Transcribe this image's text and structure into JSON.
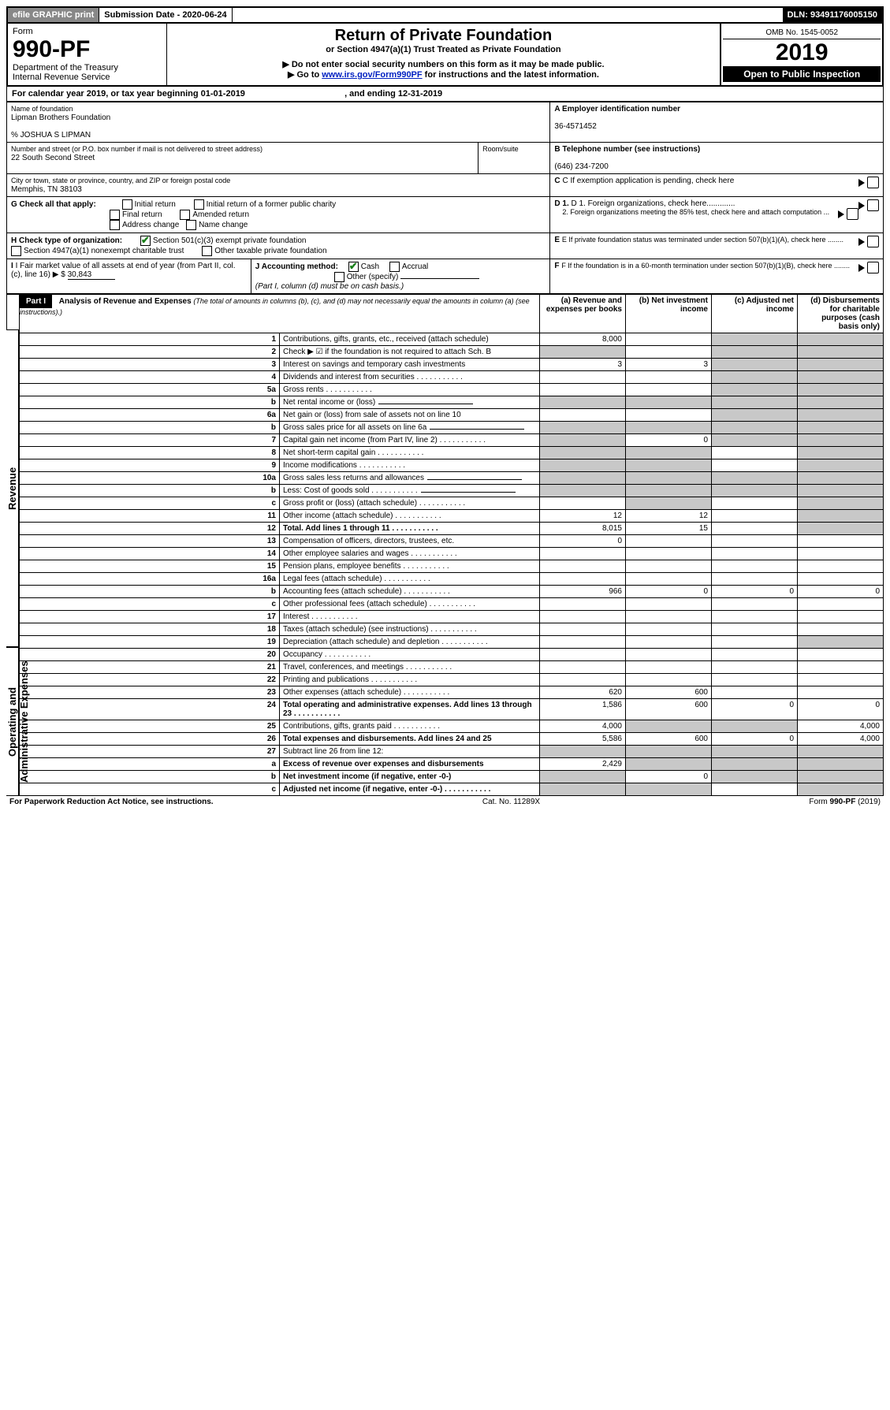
{
  "topbar": {
    "efile": "efile GRAPHIC print",
    "submission": "Submission Date - 2020-06-24",
    "dln": "DLN: 93491176005150"
  },
  "header": {
    "form": "Form",
    "num": "990-PF",
    "dept": "Department of the Treasury",
    "irs": "Internal Revenue Service",
    "title": "Return of Private Foundation",
    "subtitle": "or Section 4947(a)(1) Trust Treated as Private Foundation",
    "warn1": "Do not enter social security numbers on this form as it may be made public.",
    "warn2_pre": "Go to ",
    "warn2_link": "www.irs.gov/Form990PF",
    "warn2_post": " for instructions and the latest information.",
    "omb": "OMB No. 1545-0052",
    "year": "2019",
    "open": "Open to Public Inspection"
  },
  "calendar": {
    "pre": "For calendar year 2019, or tax year beginning ",
    "begin": "01-01-2019",
    "mid": " , and ending ",
    "end": "12-31-2019"
  },
  "meta": {
    "name_label": "Name of foundation",
    "name": "Lipman Brothers Foundation",
    "careof": "% JOSHUA S LIPMAN",
    "addr_label": "Number and street (or P.O. box number if mail is not delivered to street address)",
    "addr": "22 South Second Street",
    "room": "Room/suite",
    "city_label": "City or town, state or province, country, and ZIP or foreign postal code",
    "city": "Memphis, TN  38103",
    "a_label": "A Employer identification number",
    "a": "36-4571452",
    "b_label": "B Telephone number (see instructions)",
    "b": "(646) 234-7200",
    "c": "C  If exemption application is pending, check here",
    "d1": "D 1. Foreign organizations, check here.............",
    "d2": "2. Foreign organizations meeting the 85% test, check here and attach computation ...",
    "e": "E  If private foundation status was terminated under section 507(b)(1)(A), check here ........",
    "f": "F  If the foundation is in a 60-month termination under section 507(b)(1)(B), check here ........",
    "g": "G Check all that apply:",
    "g_opts": [
      "Initial return",
      "Initial return of a former public charity",
      "Final return",
      "Amended return",
      "Address change",
      "Name change"
    ],
    "h": "H Check type of organization:",
    "h1": "Section 501(c)(3) exempt private foundation",
    "h2": "Section 4947(a)(1) nonexempt charitable trust",
    "h3": "Other taxable private foundation",
    "i": "I Fair market value of all assets at end of year (from Part II, col. (c), line 16)",
    "i_val": "30,843",
    "j": "J Accounting method:",
    "j1": "Cash",
    "j2": "Accrual",
    "j3": "Other (specify)",
    "j_note": "(Part I, column (d) must be on cash basis.)"
  },
  "part1": {
    "label": "Part I",
    "title": "Analysis of Revenue and Expenses",
    "title_note": "(The total of amounts in columns (b), (c), and (d) may not necessarily equal the amounts in column (a) (see instructions).)",
    "cols": {
      "a": "(a) Revenue and expenses per books",
      "b": "(b) Net investment income",
      "c": "(c) Adjusted net income",
      "d": "(d) Disbursements for charitable purposes (cash basis only)"
    }
  },
  "rows": [
    {
      "n": "1",
      "d": "Contributions, gifts, grants, etc., received (attach schedule)",
      "a": "8,000",
      "cg": true,
      "dg": true
    },
    {
      "n": "2",
      "d": "Check ▶ ☑ if the foundation is not required to attach Sch. B",
      "ag": true,
      "cg": true,
      "dg": true,
      "nobold": true
    },
    {
      "n": "3",
      "d": "Interest on savings and temporary cash investments",
      "a": "3",
      "b": "3",
      "cg": true,
      "dg": true
    },
    {
      "n": "4",
      "d": "Dividends and interest from securities",
      "dots": true,
      "cg": true,
      "dg": true
    },
    {
      "n": "5a",
      "d": "Gross rents",
      "dots": true,
      "cg": true,
      "dg": true
    },
    {
      "n": "b",
      "d": "Net rental income or (loss)",
      "line": true,
      "ag": true,
      "bg": true,
      "cg": true,
      "dg": true
    },
    {
      "n": "6a",
      "d": "Net gain or (loss) from sale of assets not on line 10",
      "cg": true,
      "dg": true
    },
    {
      "n": "b",
      "d": "Gross sales price for all assets on line 6a",
      "line": true,
      "ag": true,
      "bg": true,
      "cg": true,
      "dg": true
    },
    {
      "n": "7",
      "d": "Capital gain net income (from Part IV, line 2)",
      "dots": true,
      "ag": true,
      "b": "0",
      "cg": true,
      "dg": true
    },
    {
      "n": "8",
      "d": "Net short-term capital gain",
      "dots": true,
      "ag": true,
      "bg": true,
      "dg": true
    },
    {
      "n": "9",
      "d": "Income modifications",
      "dots": true,
      "ag": true,
      "bg": true,
      "dg": true
    },
    {
      "n": "10a",
      "d": "Gross sales less returns and allowances",
      "line": true,
      "ag": true,
      "bg": true,
      "cg": true,
      "dg": true
    },
    {
      "n": "b",
      "d": "Less: Cost of goods sold",
      "dots": true,
      "line": true,
      "ag": true,
      "bg": true,
      "cg": true,
      "dg": true
    },
    {
      "n": "c",
      "d": "Gross profit or (loss) (attach schedule)",
      "dots": true,
      "bg": true,
      "dg": true
    },
    {
      "n": "11",
      "d": "Other income (attach schedule)",
      "dots": true,
      "a": "12",
      "b": "12",
      "dg": true
    },
    {
      "n": "12",
      "d": "Total. Add lines 1 through 11",
      "dots": true,
      "bold": true,
      "a": "8,015",
      "b": "15",
      "dg": true
    },
    {
      "n": "13",
      "d": "Compensation of officers, directors, trustees, etc.",
      "a": "0"
    },
    {
      "n": "14",
      "d": "Other employee salaries and wages",
      "dots": true
    },
    {
      "n": "15",
      "d": "Pension plans, employee benefits",
      "dots": true
    },
    {
      "n": "16a",
      "d": "Legal fees (attach schedule)",
      "dots": true
    },
    {
      "n": "b",
      "d": "Accounting fees (attach schedule)",
      "dots": true,
      "a": "966",
      "b": "0",
      "c": "0",
      "dval": "0"
    },
    {
      "n": "c",
      "d": "Other professional fees (attach schedule)",
      "dots": true
    },
    {
      "n": "17",
      "d": "Interest",
      "dots": true
    },
    {
      "n": "18",
      "d": "Taxes (attach schedule) (see instructions)",
      "dots": true
    },
    {
      "n": "19",
      "d": "Depreciation (attach schedule) and depletion",
      "dots": true,
      "dg": true
    },
    {
      "n": "20",
      "d": "Occupancy",
      "dots": true
    },
    {
      "n": "21",
      "d": "Travel, conferences, and meetings",
      "dots": true
    },
    {
      "n": "22",
      "d": "Printing and publications",
      "dots": true
    },
    {
      "n": "23",
      "d": "Other expenses (attach schedule)",
      "dots": true,
      "a": "620",
      "b": "600"
    },
    {
      "n": "24",
      "d": "Total operating and administrative expenses. Add lines 13 through 23",
      "dots": true,
      "bold": true,
      "a": "1,586",
      "b": "600",
      "c": "0",
      "dval": "0"
    },
    {
      "n": "25",
      "d": "Contributions, gifts, grants paid",
      "dots": true,
      "a": "4,000",
      "bg": true,
      "cg": true,
      "dval": "4,000"
    },
    {
      "n": "26",
      "d": "Total expenses and disbursements. Add lines 24 and 25",
      "bold": true,
      "a": "5,586",
      "b": "600",
      "c": "0",
      "dval": "4,000"
    },
    {
      "n": "27",
      "d": "Subtract line 26 from line 12:",
      "ag": true,
      "bg": true,
      "cg": true,
      "dg": true
    },
    {
      "n": "a",
      "d": "Excess of revenue over expenses and disbursements",
      "bold": true,
      "a": "2,429",
      "bg": true,
      "cg": true,
      "dg": true
    },
    {
      "n": "b",
      "d": "Net investment income (if negative, enter -0-)",
      "bold": true,
      "ag": true,
      "b": "0",
      "cg": true,
      "dg": true
    },
    {
      "n": "c",
      "d": "Adjusted net income (if negative, enter -0-)",
      "bold": true,
      "dots": true,
      "ag": true,
      "bg": true,
      "dg": true
    }
  ],
  "footer": {
    "left": "For Paperwork Reduction Act Notice, see instructions.",
    "mid": "Cat. No. 11289X",
    "right": "Form 990-PF (2019)"
  }
}
